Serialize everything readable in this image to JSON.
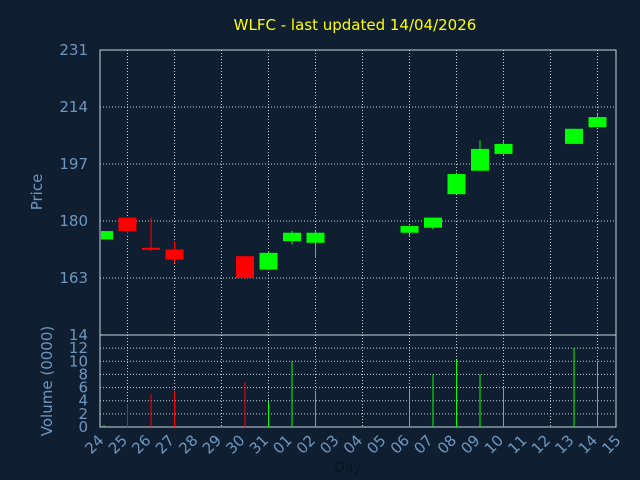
{
  "chart_data": [
    {
      "type": "candlestick",
      "title": "WLFC - last updated 14/04/2026",
      "ylabel": "Price",
      "ylim": [
        146,
        231
      ],
      "yticks": [
        163,
        180,
        197,
        214,
        231
      ],
      "grid": true,
      "colors": {
        "up": "#00ff00",
        "down": "#ff0000",
        "title": "#ffff00",
        "axis_text": "#6f97bd"
      },
      "candles": [
        {
          "day": "24",
          "open": 174.5,
          "high": 177.0,
          "low": 174.5,
          "close": 177.0
        },
        {
          "day": "25",
          "open": 181.0,
          "high": 181.0,
          "low": 176.0,
          "close": 177.0
        },
        {
          "day": "26",
          "open": 172.0,
          "high": 181.0,
          "low": 171.0,
          "close": 171.5
        },
        {
          "day": "27",
          "open": 171.5,
          "high": 174.0,
          "low": 167.5,
          "close": 168.5
        },
        {
          "day": "30",
          "open": 169.5,
          "high": 169.5,
          "low": 162.5,
          "close": 163.0
        },
        {
          "day": "31",
          "open": 165.5,
          "high": 171.0,
          "low": 165.5,
          "close": 170.5
        },
        {
          "day": "01",
          "open": 174.0,
          "high": 177.0,
          "low": 173.0,
          "close": 176.5
        },
        {
          "day": "02",
          "open": 173.5,
          "high": 177.0,
          "low": 169.0,
          "close": 176.5
        },
        {
          "day": "06",
          "open": 176.5,
          "high": 178.5,
          "low": 175.5,
          "close": 178.5
        },
        {
          "day": "07",
          "open": 178.0,
          "high": 181.0,
          "low": 177.5,
          "close": 181.0
        },
        {
          "day": "08",
          "open": 188.0,
          "high": 194.5,
          "low": 188.0,
          "close": 194.0
        },
        {
          "day": "09",
          "open": 195.0,
          "high": 204.0,
          "low": 195.0,
          "close": 201.5
        },
        {
          "day": "10",
          "open": 200.0,
          "high": 204.0,
          "low": 199.5,
          "close": 203.0
        },
        {
          "day": "13",
          "open": 203.0,
          "high": 207.5,
          "low": 203.0,
          "close": 207.5
        },
        {
          "day": "14",
          "open": 208.0,
          "high": 212.0,
          "low": 208.0,
          "close": 211.0
        }
      ]
    },
    {
      "type": "bar",
      "xlabel": "Day",
      "ylabel": "Volume (0000)",
      "ylim": [
        0,
        14
      ],
      "yticks": [
        0,
        2,
        4,
        6,
        8,
        10,
        12,
        14
      ],
      "grid": true,
      "categories": [
        "24",
        "25",
        "26",
        "27",
        "28",
        "29",
        "30",
        "31",
        "01",
        "02",
        "03",
        "04",
        "05",
        "06",
        "07",
        "08",
        "09",
        "10",
        "11",
        "12",
        "13",
        "14",
        "15"
      ],
      "values": [
        {
          "day": "24",
          "volume": 0.3,
          "direction": "up"
        },
        {
          "day": "25",
          "volume": 3.5,
          "direction": "down"
        },
        {
          "day": "26",
          "volume": 5.0,
          "direction": "down"
        },
        {
          "day": "27",
          "volume": 5.5,
          "direction": "down"
        },
        {
          "day": "30",
          "volume": 6.8,
          "direction": "down"
        },
        {
          "day": "31",
          "volume": 3.8,
          "direction": "up"
        },
        {
          "day": "01",
          "volume": 10.0,
          "direction": "up"
        },
        {
          "day": "02",
          "volume": 5.5,
          "direction": "up"
        },
        {
          "day": "06",
          "volume": 5.8,
          "direction": "up"
        },
        {
          "day": "07",
          "volume": 8.0,
          "direction": "up"
        },
        {
          "day": "08",
          "volume": 10.2,
          "direction": "up"
        },
        {
          "day": "09",
          "volume": 8.0,
          "direction": "up"
        },
        {
          "day": "10",
          "volume": 6.0,
          "direction": "up"
        },
        {
          "day": "13",
          "volume": 12.0,
          "direction": "up"
        },
        {
          "day": "14",
          "volume": 10.0,
          "direction": "up"
        }
      ]
    }
  ]
}
